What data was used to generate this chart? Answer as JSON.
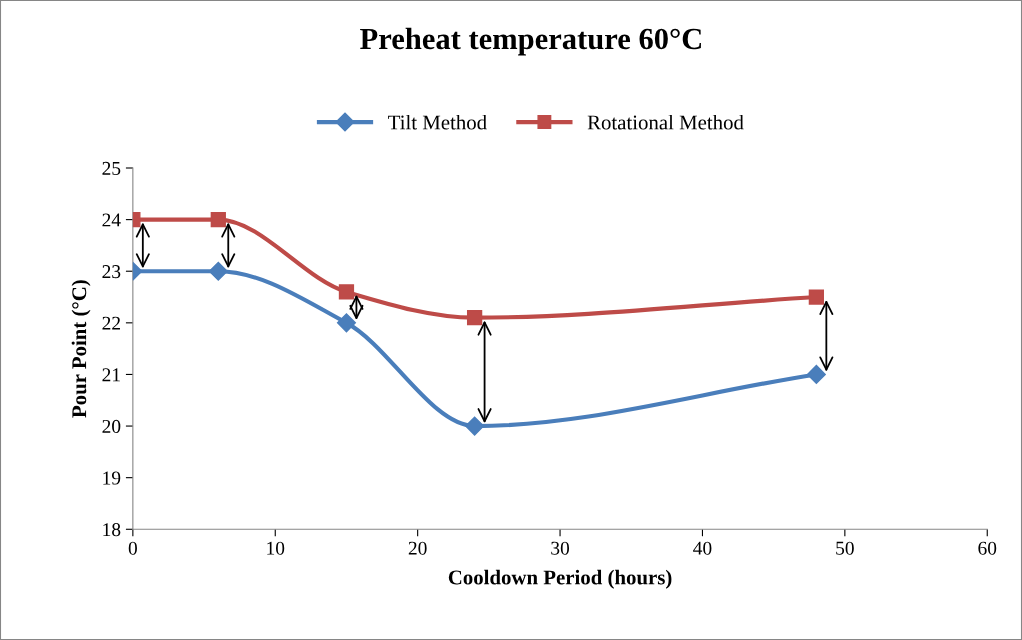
{
  "chart_data": {
    "type": "line",
    "title": "Preheat temperature 60°C",
    "xlabel": "Cooldown Period (hours)",
    "ylabel": "Pour Point (°C)",
    "x": [
      0,
      6,
      15,
      24,
      48
    ],
    "series": [
      {
        "name": "Tilt Method",
        "color": "#4a7ebb",
        "marker": "diamond",
        "values": [
          23,
          23,
          22,
          20,
          21
        ]
      },
      {
        "name": "Rotational Method",
        "color": "#be4b48",
        "marker": "square",
        "values": [
          24,
          24,
          22.6,
          22.1,
          22.5
        ]
      }
    ],
    "xlim": [
      0,
      60
    ],
    "xticks": [
      0,
      10,
      20,
      30,
      40,
      50,
      60
    ],
    "ylim": [
      18,
      25
    ],
    "yticks": [
      18,
      19,
      20,
      21,
      22,
      23,
      24,
      25
    ],
    "grid": false,
    "legend": "top",
    "line_style": "solid"
  }
}
